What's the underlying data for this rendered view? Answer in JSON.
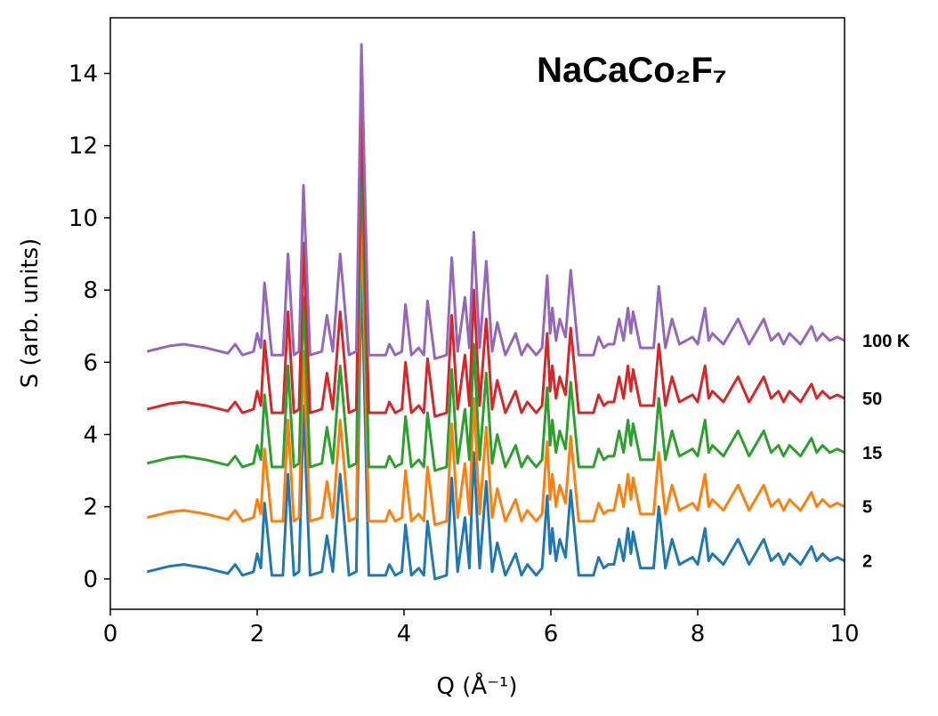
{
  "chart_data": {
    "type": "line",
    "title": "NaCaCo₂F₇",
    "xlabel": "Q (Å⁻¹)",
    "ylabel": "S (arb. units)",
    "xlim": [
      0,
      10
    ],
    "ylim": [
      -0.84,
      15.54
    ],
    "xticks": [
      0,
      2,
      4,
      6,
      8,
      10
    ],
    "yticks": [
      0,
      2,
      4,
      6,
      8,
      10,
      12,
      14
    ],
    "x": [
      0.5,
      0.8,
      1.0,
      1.3,
      1.6,
      1.7,
      1.8,
      1.95,
      2.0,
      2.05,
      2.1,
      2.2,
      2.35,
      2.42,
      2.5,
      2.57,
      2.63,
      2.72,
      2.88,
      2.95,
      3.03,
      3.13,
      3.25,
      3.35,
      3.42,
      3.52,
      3.75,
      3.8,
      3.88,
      3.97,
      4.02,
      4.1,
      4.2,
      4.27,
      4.32,
      4.42,
      4.58,
      4.65,
      4.73,
      4.83,
      4.89,
      4.95,
      5.03,
      5.12,
      5.2,
      5.27,
      5.38,
      5.52,
      5.6,
      5.68,
      5.8,
      5.88,
      5.95,
      5.99,
      6.02,
      6.07,
      6.12,
      6.2,
      6.27,
      6.38,
      6.58,
      6.65,
      6.72,
      6.78,
      6.86,
      6.93,
      6.99,
      7.05,
      7.09,
      7.12,
      7.22,
      7.4,
      7.47,
      7.56,
      7.65,
      7.75,
      7.93,
      8.0,
      8.1,
      8.15,
      8.2,
      8.35,
      8.55,
      8.7,
      8.9,
      9.0,
      9.1,
      9.17,
      9.25,
      9.4,
      9.55,
      9.62,
      9.7,
      9.8,
      9.9,
      10.0
    ],
    "series": [
      {
        "name": "2",
        "color": "#1f77b4",
        "values": [
          0.2,
          0.35,
          0.4,
          0.3,
          0.15,
          0.4,
          0.1,
          0.2,
          0.7,
          0.3,
          2.1,
          0.1,
          0.1,
          2.9,
          0.1,
          0.2,
          4.8,
          0.1,
          0.2,
          1.2,
          0.2,
          2.9,
          0.1,
          0.2,
          8.7,
          0.1,
          0.1,
          0.4,
          0.1,
          0.2,
          1.5,
          0.1,
          0.3,
          0.1,
          1.6,
          0,
          0.1,
          2.8,
          0.2,
          1.7,
          0.3,
          3.5,
          0.3,
          2.7,
          0.2,
          1.0,
          0.1,
          0.7,
          0.1,
          0.4,
          0.1,
          0.3,
          2.3,
          0.7,
          1.4,
          0.5,
          1.1,
          0.6,
          2.45,
          0.1,
          0.1,
          0.6,
          0.3,
          0.4,
          0.4,
          1.1,
          0.5,
          1.4,
          0.7,
          1.3,
          0.3,
          0.3,
          2.0,
          0.3,
          1.1,
          0.4,
          0.6,
          0.4,
          1.4,
          0.5,
          0.7,
          0.4,
          1.1,
          0.4,
          1.1,
          0.5,
          0.7,
          0.4,
          0.7,
          0.4,
          0.9,
          0.5,
          0.7,
          0.5,
          0.6,
          0.5
        ]
      },
      {
        "name": "5",
        "color": "#ff7f0e",
        "values": [
          1.7,
          1.85,
          1.9,
          1.8,
          1.65,
          1.9,
          1.6,
          1.7,
          2.2,
          1.8,
          3.6,
          1.6,
          1.6,
          4.4,
          1.6,
          1.7,
          6.3,
          1.6,
          1.7,
          2.7,
          1.7,
          4.4,
          1.6,
          1.7,
          10.2,
          1.6,
          1.6,
          1.9,
          1.6,
          1.7,
          3.0,
          1.6,
          1.8,
          1.6,
          3.1,
          1.5,
          1.6,
          4.3,
          1.7,
          3.2,
          1.8,
          5.0,
          1.8,
          4.2,
          1.7,
          2.5,
          1.6,
          2.2,
          1.6,
          1.9,
          1.6,
          1.8,
          3.8,
          2.2,
          2.9,
          2.0,
          2.6,
          2.1,
          3.95,
          1.6,
          1.6,
          2.1,
          1.8,
          1.9,
          1.9,
          2.6,
          2.0,
          2.9,
          2.2,
          2.8,
          1.8,
          1.8,
          3.5,
          1.8,
          2.6,
          1.9,
          2.1,
          1.9,
          2.9,
          2.0,
          2.2,
          1.9,
          2.6,
          1.9,
          2.6,
          2.0,
          2.2,
          1.9,
          2.2,
          1.9,
          2.4,
          2.0,
          2.2,
          2.0,
          2.1,
          2.0
        ]
      },
      {
        "name": "15",
        "color": "#2ca02c",
        "values": [
          3.2,
          3.35,
          3.4,
          3.3,
          3.15,
          3.4,
          3.1,
          3.2,
          3.7,
          3.3,
          5.1,
          3.1,
          3.1,
          5.9,
          3.1,
          3.2,
          7.8,
          3.1,
          3.2,
          4.2,
          3.2,
          5.9,
          3.1,
          3.2,
          11.7,
          3.1,
          3.1,
          3.4,
          3.1,
          3.2,
          4.5,
          3.1,
          3.3,
          3.1,
          4.6,
          3.0,
          3.1,
          5.8,
          3.2,
          4.7,
          3.3,
          6.5,
          3.3,
          5.7,
          3.2,
          4.0,
          3.1,
          3.7,
          3.1,
          3.4,
          3.1,
          3.3,
          5.3,
          3.7,
          4.4,
          3.5,
          4.1,
          3.6,
          5.45,
          3.1,
          3.1,
          3.6,
          3.3,
          3.4,
          3.4,
          4.1,
          3.5,
          4.4,
          3.7,
          4.3,
          3.3,
          3.3,
          5.0,
          3.3,
          4.1,
          3.4,
          3.6,
          3.4,
          4.4,
          3.5,
          3.7,
          3.4,
          4.1,
          3.4,
          4.1,
          3.5,
          3.7,
          3.4,
          3.7,
          3.4,
          3.9,
          3.5,
          3.7,
          3.5,
          3.6,
          3.5
        ]
      },
      {
        "name": "50",
        "color": "#d62728",
        "values": [
          4.7,
          4.85,
          4.9,
          4.8,
          4.65,
          4.9,
          4.6,
          4.7,
          5.2,
          4.8,
          6.6,
          4.6,
          4.6,
          7.4,
          4.6,
          4.7,
          9.3,
          4.6,
          4.7,
          5.7,
          4.7,
          7.4,
          4.6,
          4.7,
          13.2,
          4.6,
          4.6,
          4.9,
          4.6,
          4.7,
          6.0,
          4.6,
          4.8,
          4.6,
          6.1,
          4.5,
          4.6,
          7.3,
          4.7,
          6.2,
          4.8,
          8.0,
          4.8,
          7.2,
          4.7,
          5.5,
          4.6,
          5.2,
          4.6,
          4.9,
          4.6,
          4.8,
          6.8,
          5.2,
          5.9,
          5.0,
          5.6,
          5.1,
          6.95,
          4.6,
          4.6,
          5.1,
          4.8,
          4.9,
          4.9,
          5.6,
          5.0,
          5.9,
          5.2,
          5.8,
          4.8,
          4.8,
          6.5,
          4.8,
          5.6,
          4.9,
          5.1,
          4.9,
          5.9,
          5.0,
          5.2,
          4.9,
          5.6,
          4.9,
          5.6,
          5.0,
          5.2,
          4.9,
          5.2,
          4.9,
          5.4,
          5.0,
          5.2,
          5.0,
          5.1,
          5.0
        ]
      },
      {
        "name": "100 K",
        "color": "#9467bd",
        "values": [
          6.3,
          6.45,
          6.5,
          6.4,
          6.25,
          6.5,
          6.2,
          6.3,
          6.8,
          6.4,
          8.2,
          6.2,
          6.2,
          9.0,
          6.2,
          6.3,
          10.9,
          6.2,
          6.3,
          7.3,
          6.3,
          9.0,
          6.2,
          6.3,
          14.8,
          6.2,
          6.2,
          6.5,
          6.2,
          6.3,
          7.6,
          6.2,
          6.4,
          6.2,
          7.7,
          6.1,
          6.2,
          8.9,
          6.3,
          7.8,
          6.4,
          9.6,
          6.4,
          8.8,
          6.3,
          7.1,
          6.2,
          6.8,
          6.2,
          6.5,
          6.2,
          6.4,
          8.4,
          6.8,
          7.5,
          6.6,
          7.2,
          6.7,
          8.55,
          6.2,
          6.2,
          6.7,
          6.4,
          6.5,
          6.5,
          7.2,
          6.6,
          7.5,
          6.8,
          7.4,
          6.4,
          6.4,
          8.1,
          6.4,
          7.2,
          6.5,
          6.7,
          6.5,
          7.5,
          6.6,
          6.8,
          6.5,
          7.2,
          6.5,
          7.2,
          6.6,
          6.8,
          6.5,
          6.8,
          6.5,
          7.0,
          6.6,
          6.8,
          6.6,
          6.7,
          6.6
        ]
      }
    ]
  }
}
